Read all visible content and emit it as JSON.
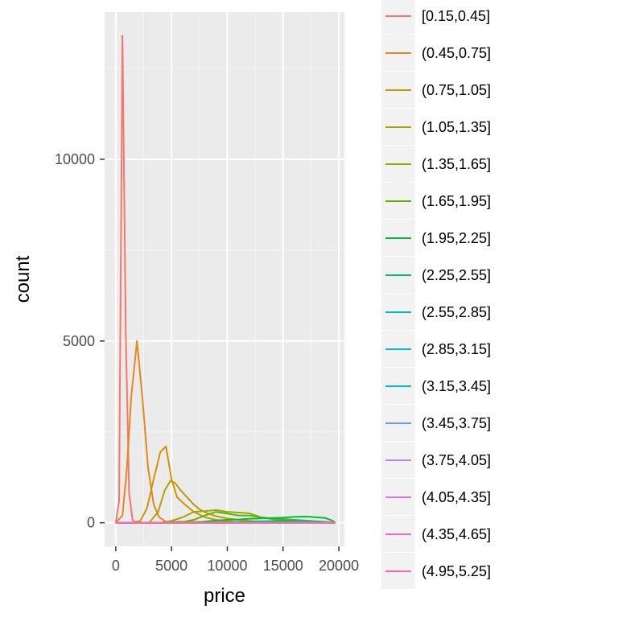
{
  "chart_data": {
    "type": "line",
    "title": "",
    "xlabel": "price",
    "ylabel": "count",
    "xlim": [
      -1000,
      20500
    ],
    "ylim": [
      -650,
      14050
    ],
    "x_ticks": [
      0,
      5000,
      10000,
      15000,
      20000
    ],
    "x_tick_labels": [
      "0",
      "5000",
      "10000",
      "15000",
      "20000"
    ],
    "y_ticks": [
      0,
      5000,
      10000
    ],
    "y_tick_labels": [
      "0",
      "5000",
      "10000"
    ],
    "grid": true,
    "legend_position": "right",
    "series": [
      {
        "name": "[0.15,0.45]",
        "color": "#F8766D",
        "x": [
          0,
          300,
          600,
          900,
          1200,
          1500,
          1800,
          2500,
          19700
        ],
        "y": [
          0,
          600,
          13400,
          5200,
          800,
          80,
          10,
          0,
          0
        ]
      },
      {
        "name": "(0.45,0.75]",
        "color": "#E7861B",
        "x": [
          0,
          600,
          1000,
          1400,
          1900,
          2400,
          2900,
          3400,
          3900,
          4500,
          19700
        ],
        "y": [
          0,
          200,
          1500,
          3500,
          5000,
          3400,
          1500,
          500,
          150,
          30,
          0
        ]
      },
      {
        "name": "(0.75,1.05]",
        "color": "#D39200",
        "x": [
          0,
          1500,
          2200,
          2800,
          3400,
          4000,
          4500,
          5000,
          5500,
          6200,
          7000,
          8000,
          9000,
          10000,
          11000,
          12000,
          13000,
          19700
        ],
        "y": [
          0,
          0,
          50,
          400,
          1200,
          1950,
          2100,
          1200,
          700,
          500,
          300,
          150,
          80,
          40,
          20,
          10,
          5,
          0
        ]
      },
      {
        "name": "(1.05,1.35]",
        "color": "#B79F00",
        "x": [
          0,
          3000,
          3800,
          4400,
          4900,
          5300,
          5800,
          6400,
          7000,
          7600,
          8300,
          9000,
          10000,
          11000,
          12000,
          13000,
          15000,
          19700
        ],
        "y": [
          0,
          0,
          300,
          900,
          1150,
          1100,
          900,
          700,
          500,
          350,
          250,
          180,
          120,
          80,
          50,
          30,
          10,
          0
        ]
      },
      {
        "name": "(1.35,1.65]",
        "color": "#93AA00",
        "x": [
          0,
          4000,
          5000,
          6000,
          7000,
          8000,
          9000,
          10000,
          11000,
          12000,
          13000,
          14000,
          15000,
          16000,
          17000,
          19700
        ],
        "y": [
          0,
          0,
          50,
          150,
          300,
          320,
          350,
          300,
          280,
          260,
          150,
          100,
          60,
          30,
          10,
          0
        ]
      },
      {
        "name": "(1.65,1.95]",
        "color": "#5EB300",
        "x": [
          0,
          5000,
          6000,
          7000,
          8000,
          9000,
          10000,
          11000,
          12000,
          13000,
          14000,
          15000,
          16000,
          17000,
          18000,
          19700
        ],
        "y": [
          0,
          0,
          20,
          80,
          200,
          300,
          250,
          200,
          200,
          150,
          120,
          100,
          80,
          60,
          40,
          0
        ]
      },
      {
        "name": "(1.95,2.25]",
        "color": "#00BA38",
        "x": [
          0,
          7000,
          8000,
          9000,
          10000,
          11000,
          12000,
          13000,
          14000,
          15000,
          16000,
          17000,
          18000,
          18800,
          19400,
          19700
        ],
        "y": [
          0,
          0,
          30,
          60,
          80,
          90,
          110,
          120,
          130,
          140,
          160,
          170,
          150,
          130,
          60,
          0
        ]
      },
      {
        "name": "(2.25,2.55]",
        "color": "#00BF74",
        "x": [
          0,
          9000,
          11000,
          13000,
          15000,
          17000,
          18500,
          19700
        ],
        "y": [
          0,
          0,
          20,
          40,
          50,
          45,
          30,
          0
        ]
      },
      {
        "name": "(2.55,2.85]",
        "color": "#00C0AF",
        "x": [
          0,
          10000,
          13000,
          16000,
          18000,
          19700
        ],
        "y": [
          0,
          0,
          8,
          12,
          10,
          0
        ]
      },
      {
        "name": "(2.85,3.15]",
        "color": "#00BCD8",
        "x": [
          0,
          10000,
          14000,
          17000,
          19700
        ],
        "y": [
          0,
          0,
          5,
          6,
          0
        ]
      },
      {
        "name": "(3.15,3.45]",
        "color": "#00B0F6",
        "x": [
          0,
          19700
        ],
        "y": [
          0,
          0
        ]
      },
      {
        "name": "(3.45,3.75]",
        "color": "#619CFF",
        "x": [
          0,
          19700
        ],
        "y": [
          0,
          0
        ]
      },
      {
        "name": "(3.75,4.05]",
        "color": "#B983FF",
        "x": [
          0,
          19700
        ],
        "y": [
          0,
          0
        ]
      },
      {
        "name": "(4.05,4.35]",
        "color": "#E76BF3",
        "x": [
          0,
          19700
        ],
        "y": [
          0,
          0
        ]
      },
      {
        "name": "(4.35,4.65]",
        "color": "#FD61D1",
        "x": [
          0,
          19700
        ],
        "y": [
          0,
          0
        ]
      },
      {
        "name": "(4.95,5.25]",
        "color": "#FF67A4",
        "x": [
          0,
          19700
        ],
        "y": [
          0,
          0
        ]
      }
    ]
  }
}
